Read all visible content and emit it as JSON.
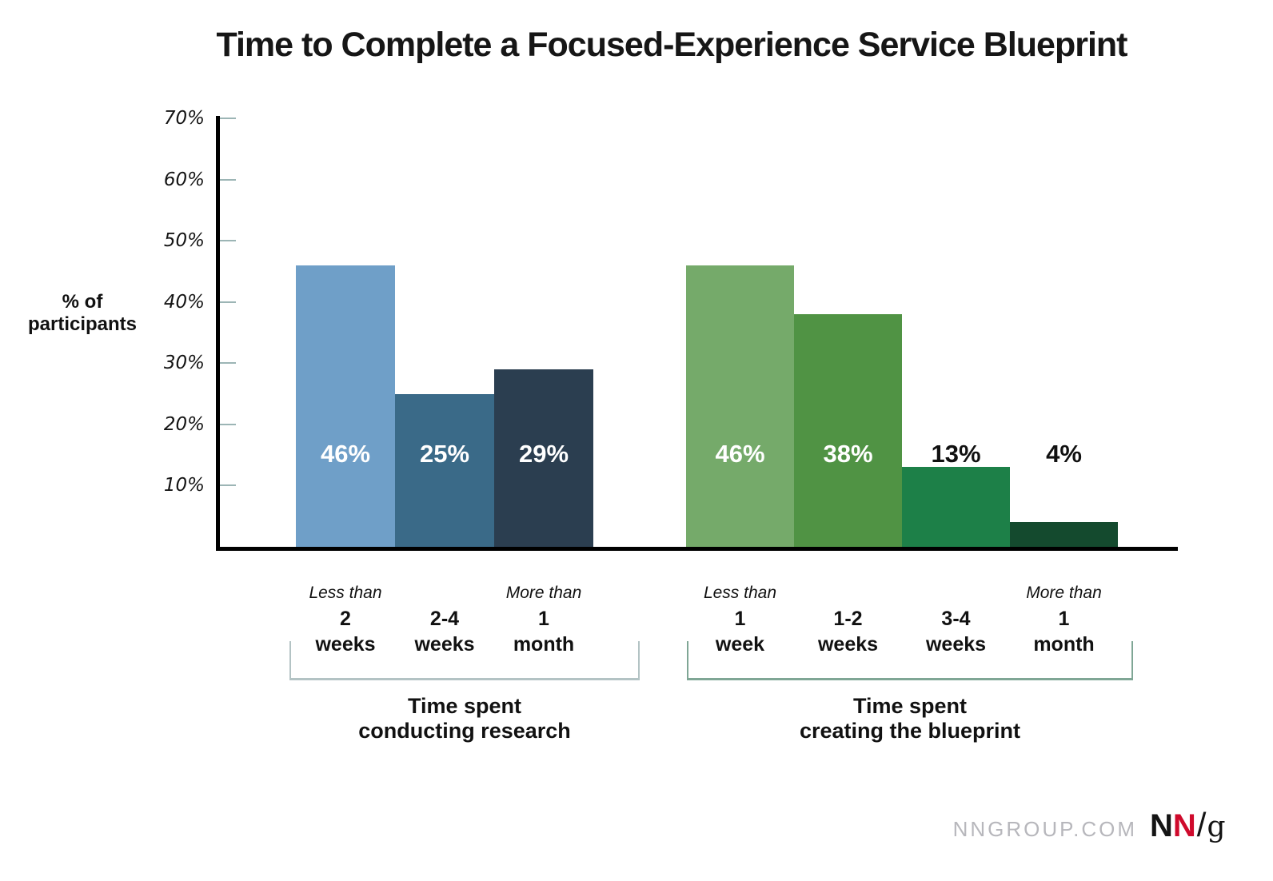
{
  "title": "Time to Complete a Focused-Experience Service Blueprint",
  "y_axis": {
    "title_line1": "% of",
    "title_line2": "participants",
    "ticks": [
      {
        "label": "70%",
        "value": 70
      },
      {
        "label": "60%",
        "value": 60
      },
      {
        "label": "50%",
        "value": 50
      },
      {
        "label": "40%",
        "value": 40
      },
      {
        "label": "30%",
        "value": 30
      },
      {
        "label": "20%",
        "value": 20
      },
      {
        "label": "10%",
        "value": 10
      }
    ]
  },
  "chart_data": {
    "type": "bar",
    "title": "Time to Complete a Focused-Experience Service Blueprint",
    "ylabel": "% of participants",
    "ylim": [
      0,
      70
    ],
    "grid": false,
    "legend": false,
    "groups": [
      {
        "name": "research",
        "caption_line1": "Time spent",
        "caption_line2": "conducting research",
        "categories": [
          "Less than 2 weeks",
          "2-4 weeks",
          "More than 1 month"
        ],
        "values": [
          46,
          25,
          29
        ],
        "value_labels": [
          "46%",
          "25%",
          "29%"
        ],
        "label_placements": [
          "inside",
          "inside",
          "inside"
        ],
        "bar_colors": [
          "#6f9fc8",
          "#3a6a88",
          "#2b3e50"
        ],
        "tick_lines": [
          {
            "prefix": "Less than",
            "qty": "2",
            "unit": "weeks"
          },
          {
            "prefix": "",
            "qty": "2-4",
            "unit": "weeks"
          },
          {
            "prefix": "More than",
            "qty": "1",
            "unit": "month"
          }
        ]
      },
      {
        "name": "blueprint",
        "caption_line1": "Time spent",
        "caption_line2": "creating the blueprint",
        "categories": [
          "Less than 1 week",
          "1-2 weeks",
          "3-4 weeks",
          "More than 1 month"
        ],
        "values": [
          46,
          38,
          13,
          4
        ],
        "value_labels": [
          "46%",
          "38%",
          "13%",
          "4%"
        ],
        "label_placements": [
          "inside",
          "inside",
          "above",
          "above"
        ],
        "bar_colors": [
          "#75aa6a",
          "#509344",
          "#1d8048",
          "#144a2e"
        ],
        "tick_lines": [
          {
            "prefix": "Less than",
            "qty": "1",
            "unit": "week"
          },
          {
            "prefix": "",
            "qty": "1-2",
            "unit": "weeks"
          },
          {
            "prefix": "",
            "qty": "3-4",
            "unit": "weeks"
          },
          {
            "prefix": "More than",
            "qty": "1",
            "unit": "month"
          }
        ]
      }
    ]
  },
  "footer": {
    "site": "NNGROUP.COM",
    "logo_n1": "N",
    "logo_n2": "N",
    "logo_slash": "/",
    "logo_g": "g"
  },
  "colors": {
    "axis": "#000000",
    "tick": "#9cb5b5",
    "bracket_research": "#b3c3c4",
    "bracket_blueprint": "#7fa695",
    "value_label_inside": "#ffffff",
    "value_label_above": "#111111",
    "site_text": "#b7b7bc",
    "logo_black": "#141414",
    "logo_red": "#cf0a2c"
  }
}
